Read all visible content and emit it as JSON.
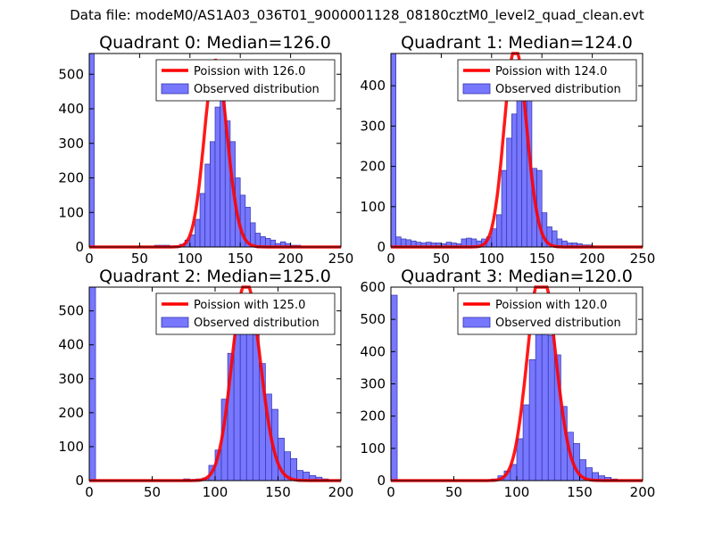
{
  "figure_title": "Data file: modeM0/AS1A03_036T01_9000001128_08180cztM0_level2_quad_clean.evt",
  "colors": {
    "bar_fill": "#7777ff",
    "bar_edge": "#3333aa",
    "poisson_line": "#ff0000",
    "axes": "#000000"
  },
  "legend_observed": "Observed distribution",
  "chart_data": [
    {
      "type": "bar",
      "title": "Quadrant 0: Median=126.0",
      "legend_line": "Poission with 126.0",
      "legend_position": "top-right",
      "median": 126.0,
      "xlim": [
        0,
        250
      ],
      "ylim": [
        0,
        560
      ],
      "xticks": [
        0,
        50,
        100,
        150,
        200,
        250
      ],
      "yticks": [
        0,
        100,
        200,
        300,
        400,
        500
      ],
      "bin_width": 5,
      "bins": [
        [
          0,
          560
        ],
        [
          65,
          5
        ],
        [
          70,
          5
        ],
        [
          75,
          5
        ],
        [
          80,
          3
        ],
        [
          85,
          3
        ],
        [
          90,
          8
        ],
        [
          95,
          20
        ],
        [
          100,
          35
        ],
        [
          105,
          80
        ],
        [
          110,
          155
        ],
        [
          115,
          240
        ],
        [
          120,
          305
        ],
        [
          125,
          405
        ],
        [
          130,
          470
        ],
        [
          135,
          365
        ],
        [
          140,
          305
        ],
        [
          145,
          200
        ],
        [
          150,
          150
        ],
        [
          155,
          115
        ],
        [
          160,
          70
        ],
        [
          165,
          40
        ],
        [
          170,
          30
        ],
        [
          175,
          25
        ],
        [
          180,
          20
        ],
        [
          185,
          10
        ],
        [
          190,
          15
        ],
        [
          195,
          10
        ],
        [
          200,
          5
        ],
        [
          205,
          5
        ]
      ]
    },
    {
      "type": "bar",
      "title": "Quadrant 1: Median=124.0",
      "legend_line": "Poission with 124.0",
      "legend_position": "top-right",
      "median": 124.0,
      "xlim": [
        0,
        250
      ],
      "ylim": [
        0,
        480
      ],
      "xticks": [
        0,
        50,
        100,
        150,
        200,
        250
      ],
      "yticks": [
        0,
        100,
        200,
        300,
        400
      ],
      "bin_width": 5,
      "bins": [
        [
          0,
          480
        ],
        [
          5,
          25
        ],
        [
          10,
          20
        ],
        [
          15,
          18
        ],
        [
          20,
          15
        ],
        [
          25,
          12
        ],
        [
          30,
          10
        ],
        [
          35,
          12
        ],
        [
          40,
          10
        ],
        [
          45,
          10
        ],
        [
          50,
          8
        ],
        [
          55,
          12
        ],
        [
          60,
          10
        ],
        [
          65,
          8
        ],
        [
          70,
          20
        ],
        [
          75,
          22
        ],
        [
          80,
          20
        ],
        [
          85,
          15
        ],
        [
          90,
          20
        ],
        [
          95,
          25
        ],
        [
          100,
          45
        ],
        [
          105,
          80
        ],
        [
          110,
          190
        ],
        [
          115,
          270
        ],
        [
          120,
          330
        ],
        [
          125,
          375
        ],
        [
          130,
          400
        ],
        [
          135,
          430
        ],
        [
          140,
          195
        ],
        [
          145,
          190
        ],
        [
          150,
          85
        ],
        [
          155,
          50
        ],
        [
          160,
          40
        ],
        [
          165,
          20
        ],
        [
          170,
          15
        ],
        [
          175,
          10
        ],
        [
          180,
          10
        ],
        [
          185,
          8
        ],
        [
          190,
          5
        ],
        [
          195,
          5
        ]
      ]
    },
    {
      "type": "bar",
      "title": "Quadrant 2: Median=125.0",
      "legend_line": "Poission with 125.0",
      "legend_position": "top-right",
      "median": 125.0,
      "xlim": [
        0,
        200
      ],
      "ylim": [
        0,
        570
      ],
      "xticks": [
        0,
        50,
        100,
        150,
        200
      ],
      "yticks": [
        0,
        100,
        200,
        300,
        400,
        500
      ],
      "bin_width": 5,
      "bins": [
        [
          0,
          570
        ],
        [
          75,
          5
        ],
        [
          80,
          3
        ],
        [
          85,
          5
        ],
        [
          90,
          8
        ],
        [
          95,
          45
        ],
        [
          100,
          90
        ],
        [
          105,
          240
        ],
        [
          110,
          375
        ],
        [
          115,
          455
        ],
        [
          120,
          440
        ],
        [
          125,
          510
        ],
        [
          130,
          430
        ],
        [
          135,
          345
        ],
        [
          140,
          255
        ],
        [
          145,
          210
        ],
        [
          150,
          125
        ],
        [
          155,
          85
        ],
        [
          160,
          65
        ],
        [
          165,
          30
        ],
        [
          170,
          25
        ],
        [
          175,
          15
        ],
        [
          180,
          10
        ],
        [
          185,
          5
        ]
      ]
    },
    {
      "type": "bar",
      "title": "Quadrant 3: Median=120.0",
      "legend_line": "Poission with 120.0",
      "legend_position": "top-right",
      "median": 120.0,
      "xlim": [
        0,
        200
      ],
      "ylim": [
        0,
        600
      ],
      "xticks": [
        0,
        50,
        100,
        150,
        200
      ],
      "yticks": [
        0,
        100,
        200,
        300,
        400,
        500,
        600
      ],
      "bin_width": 5,
      "bins": [
        [
          0,
          575
        ],
        [
          80,
          5
        ],
        [
          85,
          15
        ],
        [
          90,
          30
        ],
        [
          95,
          50
        ],
        [
          100,
          130
        ],
        [
          105,
          235
        ],
        [
          110,
          375
        ],
        [
          115,
          470
        ],
        [
          120,
          575
        ],
        [
          125,
          450
        ],
        [
          130,
          390
        ],
        [
          135,
          230
        ],
        [
          140,
          150
        ],
        [
          145,
          115
        ],
        [
          150,
          65
        ],
        [
          155,
          40
        ],
        [
          160,
          25
        ],
        [
          165,
          15
        ],
        [
          170,
          10
        ],
        [
          175,
          5
        ]
      ]
    }
  ]
}
